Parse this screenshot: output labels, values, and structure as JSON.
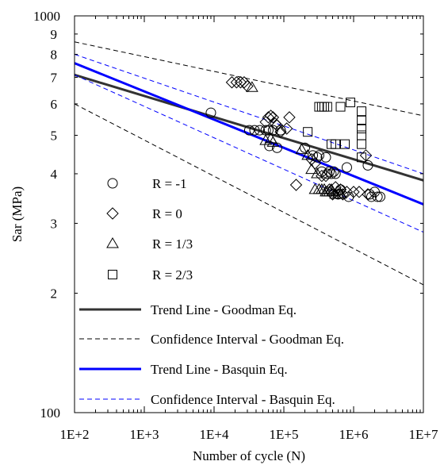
{
  "chart_data": {
    "type": "scatter",
    "title": "",
    "xlabel": "Number of cycle (N)",
    "ylabel": "Sar (MPa)",
    "x_scale": "log",
    "y_scale": "log",
    "xlim": [
      100,
      10000000
    ],
    "ylim": [
      100,
      1000
    ],
    "x_ticks": [
      "1E+2",
      "1E+3",
      "1E+4",
      "1E+5",
      "1E+6",
      "1E+7"
    ],
    "y_major_ticks": [
      "100",
      "1000"
    ],
    "y_minor_tick_values": [
      200,
      300,
      400,
      500,
      600,
      700,
      800,
      900
    ],
    "y_minor_tick_labels": [
      "2",
      "3",
      "4",
      "5",
      "6",
      "7",
      "8",
      "9"
    ],
    "grid": false,
    "legend_position": "bottom-left",
    "series": [
      {
        "name": "R = -1",
        "marker": "circle",
        "points": [
          [
            9000,
            570
          ],
          [
            32000,
            515
          ],
          [
            38000,
            515
          ],
          [
            45000,
            515
          ],
          [
            55000,
            515
          ],
          [
            60000,
            515
          ],
          [
            62000,
            470
          ],
          [
            70000,
            515
          ],
          [
            80000,
            465
          ],
          [
            90000,
            515
          ],
          [
            200000,
            465
          ],
          [
            260000,
            445
          ],
          [
            300000,
            440
          ],
          [
            320000,
            445
          ],
          [
            350000,
            405
          ],
          [
            400000,
            440
          ],
          [
            420000,
            400
          ],
          [
            450000,
            405
          ],
          [
            480000,
            400
          ],
          [
            520000,
            405
          ],
          [
            550000,
            400
          ],
          [
            600000,
            355
          ],
          [
            650000,
            365
          ],
          [
            800000,
            415
          ],
          [
            850000,
            350
          ],
          [
            1600000,
            420
          ],
          [
            1700000,
            355
          ],
          [
            1800000,
            350
          ],
          [
            2000000,
            360
          ],
          [
            2200000,
            350
          ],
          [
            2400000,
            350
          ]
        ]
      },
      {
        "name": "R = 0",
        "marker": "diamond",
        "points": [
          [
            18000,
            680
          ],
          [
            21000,
            680
          ],
          [
            24000,
            680
          ],
          [
            27000,
            680
          ],
          [
            30000,
            665
          ],
          [
            55000,
            540
          ],
          [
            60000,
            555
          ],
          [
            65000,
            560
          ],
          [
            70000,
            555
          ],
          [
            75000,
            535
          ],
          [
            80000,
            530
          ],
          [
            90000,
            510
          ],
          [
            110000,
            520
          ],
          [
            120000,
            555
          ],
          [
            150000,
            375
          ],
          [
            250000,
            435
          ],
          [
            280000,
            425
          ],
          [
            350000,
            395
          ],
          [
            400000,
            395
          ],
          [
            450000,
            365
          ],
          [
            500000,
            355
          ],
          [
            550000,
            370
          ],
          [
            600000,
            360
          ],
          [
            650000,
            365
          ],
          [
            700000,
            355
          ],
          [
            800000,
            360
          ],
          [
            1000000,
            360
          ],
          [
            1200000,
            360
          ],
          [
            1500000,
            445
          ],
          [
            1600000,
            355
          ]
        ]
      },
      {
        "name": "R = 1/3",
        "marker": "triangle",
        "points": [
          [
            35000,
            660
          ],
          [
            55000,
            485
          ],
          [
            65000,
            490
          ],
          [
            70000,
            480
          ],
          [
            180000,
            460
          ],
          [
            220000,
            445
          ],
          [
            250000,
            410
          ],
          [
            280000,
            365
          ],
          [
            300000,
            400
          ],
          [
            320000,
            365
          ],
          [
            350000,
            365
          ],
          [
            380000,
            365
          ],
          [
            400000,
            360
          ],
          [
            420000,
            360
          ],
          [
            450000,
            360
          ],
          [
            480000,
            365
          ],
          [
            500000,
            360
          ],
          [
            550000,
            355
          ],
          [
            600000,
            355
          ],
          [
            650000,
            355
          ]
        ]
      },
      {
        "name": "R = 2/3",
        "marker": "square",
        "points": [
          [
            220000,
            510
          ],
          [
            320000,
            590
          ],
          [
            350000,
            590
          ],
          [
            380000,
            590
          ],
          [
            420000,
            590
          ],
          [
            480000,
            475
          ],
          [
            550000,
            475
          ],
          [
            650000,
            590
          ],
          [
            750000,
            475
          ],
          [
            900000,
            605
          ],
          [
            1300000,
            575
          ],
          [
            1300000,
            545
          ],
          [
            1300000,
            520
          ],
          [
            1300000,
            500
          ],
          [
            1300000,
            475
          ],
          [
            1300000,
            440
          ]
        ]
      }
    ],
    "lines": [
      {
        "name": "Trend Line - Goodman Eq.",
        "style": "solid",
        "color": "#333333",
        "points": [
          [
            100,
            710
          ],
          [
            10000000,
            385
          ]
        ]
      },
      {
        "name": "Confidence Interval - Goodman Eq.",
        "style": "dashed",
        "color": "#000000",
        "points": [
          [
            100,
            860
          ],
          [
            10000000,
            560
          ]
        ]
      },
      {
        "name": "Confidence Interval - Goodman Eq.",
        "style": "dashed",
        "color": "#000000",
        "points": [
          [
            100,
            600
          ],
          [
            10000000,
            210
          ]
        ],
        "legend": false
      },
      {
        "name": "Trend Line - Basquin Eq.",
        "style": "solid",
        "color": "#0000ff",
        "points": [
          [
            100,
            760
          ],
          [
            10000000,
            335
          ]
        ]
      },
      {
        "name": "Confidence Interval - Basquin Eq.",
        "style": "dashed",
        "color": "#0000ff",
        "points": [
          [
            100,
            800
          ],
          [
            10000000,
            400
          ]
        ]
      },
      {
        "name": "Confidence Interval - Basquin Eq.",
        "style": "dashed",
        "color": "#0000ff",
        "points": [
          [
            100,
            710
          ],
          [
            10000000,
            285
          ]
        ],
        "legend": false
      }
    ],
    "legend": [
      {
        "label": "R = -1",
        "kind": "marker",
        "marker": "circle"
      },
      {
        "label": "R = 0",
        "kind": "marker",
        "marker": "diamond"
      },
      {
        "label": "R = 1/3",
        "kind": "marker",
        "marker": "triangle"
      },
      {
        "label": "R = 2/3",
        "kind": "marker",
        "marker": "square"
      },
      {
        "label": "Trend Line - Goodman Eq.",
        "kind": "line",
        "style": "solid",
        "color": "#333333"
      },
      {
        "label": "Confidence Interval - Goodman Eq.",
        "kind": "line",
        "style": "dashed",
        "color": "#000000"
      },
      {
        "label": "Trend Line - Basquin Eq.",
        "kind": "line",
        "style": "solid",
        "color": "#0000ff"
      },
      {
        "label": "Confidence Interval - Basquin Eq.",
        "kind": "line",
        "style": "dashed",
        "color": "#0000ff"
      }
    ]
  }
}
